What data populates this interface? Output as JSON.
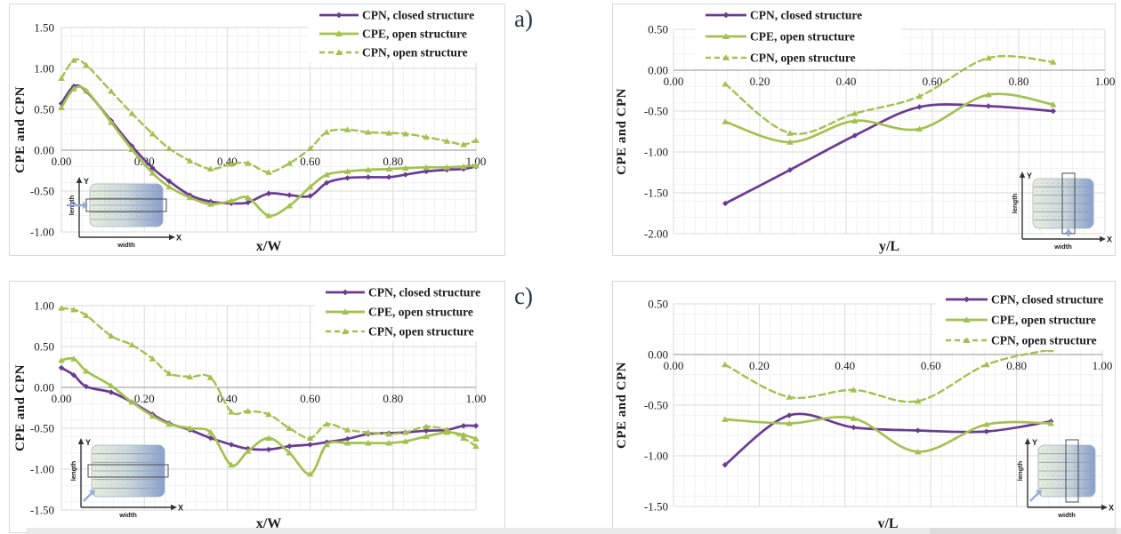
{
  "panel_labels": {
    "a": "a)",
    "c": "c)"
  },
  "colors": {
    "purple": "#6b3a91",
    "green": "#a4c14e",
    "grid_major": "#dadada",
    "grid_minor": "#f1f1f1",
    "zero_axis": "#a9a9a9",
    "text": "#1c1c1c",
    "panel_label": "#223c41",
    "inset_blue": "#93acd9",
    "inset_struct_light": "#e8edda",
    "inset_struct_mid": "#ccd8da",
    "inset_struct_dark": "#8aa0cc"
  },
  "inset_labels": {
    "y": "Y",
    "x": "X",
    "length": "length",
    "width": "width"
  },
  "chart_data": [
    {
      "key": "a",
      "type": "line",
      "xlabel": "x/W",
      "ylabel": "CPE and CPN",
      "xlim": [
        0,
        1
      ],
      "ylim": [
        -1.0,
        1.5
      ],
      "xticks": [
        "0.00",
        "0.20",
        "0.40",
        "0.60",
        "0.80",
        "1.00"
      ],
      "yticks": [
        "1.50",
        "1.00",
        "0.50",
        "0.00",
        "-0.50",
        "-1.00"
      ],
      "grid": true,
      "legend_pos": "top-right",
      "inset": {
        "strip": "horizontal",
        "arrow": "left"
      },
      "series": [
        {
          "name": "CPN, closed structure",
          "color_key": "purple",
          "dash": false,
          "marker": "diamond",
          "x": [
            0,
            0.03,
            0.06,
            0.12,
            0.17,
            0.22,
            0.26,
            0.31,
            0.36,
            0.41,
            0.45,
            0.5,
            0.55,
            0.6,
            0.64,
            0.69,
            0.74,
            0.79,
            0.83,
            0.88,
            0.93,
            0.97,
            1.0
          ],
          "y": [
            0.57,
            0.78,
            0.72,
            0.36,
            0.05,
            -0.22,
            -0.38,
            -0.55,
            -0.63,
            -0.65,
            -0.64,
            -0.53,
            -0.55,
            -0.56,
            -0.4,
            -0.34,
            -0.33,
            -0.33,
            -0.3,
            -0.26,
            -0.24,
            -0.23,
            -0.2
          ]
        },
        {
          "name": "CPE, open structure",
          "color_key": "green",
          "dash": false,
          "marker": "triangle",
          "x": [
            0,
            0.03,
            0.06,
            0.12,
            0.17,
            0.22,
            0.26,
            0.31,
            0.36,
            0.41,
            0.45,
            0.5,
            0.55,
            0.6,
            0.64,
            0.69,
            0.74,
            0.79,
            0.83,
            0.88,
            0.93,
            0.97,
            1.0
          ],
          "y": [
            0.52,
            0.75,
            0.73,
            0.34,
            0.01,
            -0.28,
            -0.45,
            -0.58,
            -0.66,
            -0.62,
            -0.58,
            -0.8,
            -0.68,
            -0.45,
            -0.3,
            -0.26,
            -0.24,
            -0.23,
            -0.22,
            -0.21,
            -0.21,
            -0.2,
            -0.19
          ]
        },
        {
          "name": "CPN, open structure",
          "color_key": "green",
          "dash": true,
          "marker": "triangle",
          "x": [
            0,
            0.03,
            0.06,
            0.12,
            0.17,
            0.22,
            0.26,
            0.31,
            0.36,
            0.41,
            0.45,
            0.5,
            0.55,
            0.6,
            0.64,
            0.69,
            0.74,
            0.79,
            0.83,
            0.88,
            0.93,
            0.97,
            1.0
          ],
          "y": [
            0.88,
            1.1,
            1.04,
            0.72,
            0.45,
            0.2,
            0.02,
            -0.13,
            -0.23,
            -0.17,
            -0.16,
            -0.27,
            -0.16,
            0.02,
            0.22,
            0.25,
            0.22,
            0.21,
            0.2,
            0.16,
            0.11,
            0.07,
            0.12
          ]
        }
      ]
    },
    {
      "key": "b",
      "type": "line",
      "xlabel": "y/L",
      "ylabel": "CPE and CPN",
      "xlim": [
        0,
        1
      ],
      "ylim": [
        -2.0,
        0.5
      ],
      "xticks": [
        "0.00",
        "0.20",
        "0.40",
        "0.60",
        "0.80",
        "1.00"
      ],
      "yticks": [
        "0.50",
        "0.00",
        "-0.50",
        "-1.00",
        "-1.50",
        "-2.00"
      ],
      "grid": true,
      "legend_pos": "top-left",
      "inset": {
        "strip": "vertical",
        "arrow": "up"
      },
      "series": [
        {
          "name": "CPN, closed structure",
          "color_key": "purple",
          "dash": false,
          "marker": "diamond",
          "x": [
            0.12,
            0.27,
            0.42,
            0.57,
            0.73,
            0.88
          ],
          "y": [
            -1.63,
            -1.22,
            -0.8,
            -0.45,
            -0.44,
            -0.5
          ]
        },
        {
          "name": "CPE, open structure",
          "color_key": "green",
          "dash": false,
          "marker": "triangle",
          "x": [
            0.12,
            0.27,
            0.42,
            0.57,
            0.73,
            0.88
          ],
          "y": [
            -0.63,
            -0.88,
            -0.62,
            -0.72,
            -0.3,
            -0.42
          ]
        },
        {
          "name": "CPN, open structure",
          "color_key": "green",
          "dash": true,
          "marker": "triangle",
          "x": [
            0.12,
            0.27,
            0.42,
            0.57,
            0.73,
            0.88
          ],
          "y": [
            -0.17,
            -0.77,
            -0.53,
            -0.32,
            0.15,
            0.1
          ]
        }
      ]
    },
    {
      "key": "c",
      "type": "line",
      "xlabel": "x/W",
      "ylabel": "CPE and CPN",
      "xlim": [
        0,
        1
      ],
      "ylim": [
        -1.5,
        1.0
      ],
      "xticks": [
        "0.00",
        "0.20",
        "0.40",
        "0.60",
        "0.80",
        "1.00"
      ],
      "yticks": [
        "1.00",
        "0.50",
        "0.00",
        "-0.50",
        "-1.00",
        "-1.50"
      ],
      "grid": true,
      "legend_pos": "top-right",
      "inset": {
        "strip": "horizontal",
        "arrow": "diagonal"
      },
      "series": [
        {
          "name": "CPN, closed structure",
          "color_key": "purple",
          "dash": false,
          "marker": "diamond",
          "x": [
            0,
            0.03,
            0.06,
            0.12,
            0.17,
            0.22,
            0.26,
            0.31,
            0.36,
            0.41,
            0.45,
            0.5,
            0.55,
            0.6,
            0.64,
            0.69,
            0.74,
            0.79,
            0.83,
            0.88,
            0.93,
            0.97,
            1.0
          ],
          "y": [
            0.24,
            0.15,
            0.01,
            -0.06,
            -0.18,
            -0.33,
            -0.44,
            -0.52,
            -0.62,
            -0.7,
            -0.75,
            -0.76,
            -0.72,
            -0.7,
            -0.67,
            -0.63,
            -0.57,
            -0.56,
            -0.55,
            -0.53,
            -0.52,
            -0.47,
            -0.47
          ]
        },
        {
          "name": "CPE, open structure",
          "color_key": "green",
          "dash": false,
          "marker": "triangle",
          "x": [
            0,
            0.03,
            0.06,
            0.12,
            0.17,
            0.22,
            0.26,
            0.31,
            0.36,
            0.41,
            0.45,
            0.5,
            0.55,
            0.6,
            0.64,
            0.69,
            0.74,
            0.79,
            0.83,
            0.88,
            0.93,
            0.97,
            1.0
          ],
          "y": [
            0.33,
            0.35,
            0.2,
            0.02,
            -0.18,
            -0.35,
            -0.45,
            -0.5,
            -0.55,
            -0.95,
            -0.78,
            -0.62,
            -0.8,
            -1.06,
            -0.7,
            -0.68,
            -0.68,
            -0.68,
            -0.66,
            -0.6,
            -0.55,
            -0.58,
            -0.63
          ]
        },
        {
          "name": "CPN, open structure",
          "color_key": "green",
          "dash": true,
          "marker": "triangle",
          "x": [
            0,
            0.03,
            0.06,
            0.12,
            0.17,
            0.22,
            0.26,
            0.31,
            0.36,
            0.41,
            0.45,
            0.5,
            0.55,
            0.6,
            0.64,
            0.69,
            0.74,
            0.79,
            0.83,
            0.88,
            0.93,
            0.97,
            1.0
          ],
          "y": [
            0.97,
            0.95,
            0.88,
            0.63,
            0.52,
            0.35,
            0.17,
            0.13,
            0.12,
            -0.3,
            -0.29,
            -0.33,
            -0.5,
            -0.62,
            -0.45,
            -0.52,
            -0.55,
            -0.57,
            -0.55,
            -0.48,
            -0.52,
            -0.62,
            -0.72
          ]
        }
      ]
    },
    {
      "key": "d",
      "type": "line",
      "xlabel": "y/L",
      "ylabel": "CPE and CPN",
      "xlim": [
        0,
        1
      ],
      "ylim": [
        -1.5,
        0.5
      ],
      "xticks": [
        "0.00",
        "0.20",
        "0.40",
        "0.60",
        "0.80",
        "1.00"
      ],
      "yticks": [
        "0.50",
        "0.00",
        "-0.50",
        "-1.00",
        "-1.50"
      ],
      "grid": true,
      "legend_pos": "top-right",
      "inset": {
        "strip": "vertical",
        "arrow": "diagonal"
      },
      "series": [
        {
          "name": "CPN, closed structure",
          "color_key": "purple",
          "dash": false,
          "marker": "diamond",
          "x": [
            0.12,
            0.27,
            0.42,
            0.57,
            0.73,
            0.88
          ],
          "y": [
            -1.09,
            -0.6,
            -0.72,
            -0.75,
            -0.76,
            -0.66
          ]
        },
        {
          "name": "CPE, open structure",
          "color_key": "green",
          "dash": false,
          "marker": "triangle",
          "x": [
            0.12,
            0.27,
            0.42,
            0.57,
            0.73,
            0.88
          ],
          "y": [
            -0.64,
            -0.68,
            -0.63,
            -0.96,
            -0.69,
            -0.68
          ]
        },
        {
          "name": "CPN, open structure",
          "color_key": "green",
          "dash": true,
          "marker": "triangle",
          "x": [
            0.12,
            0.27,
            0.42,
            0.57,
            0.73,
            0.88
          ],
          "y": [
            -0.1,
            -0.42,
            -0.35,
            -0.46,
            -0.1,
            0.05
          ]
        }
      ]
    }
  ]
}
